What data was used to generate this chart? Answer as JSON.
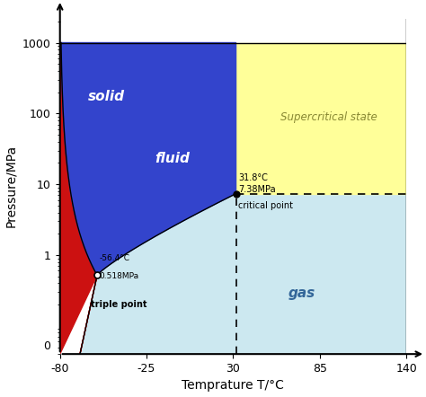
{
  "xlabel": "Temprature T/°C",
  "ylabel": "Pressure/MPa",
  "xmin": -80,
  "xmax": 140,
  "yticks_log": [
    1,
    10,
    100,
    1000
  ],
  "ytick_labels": [
    "1",
    "10",
    "100",
    "1000"
  ],
  "xticks": [
    -80,
    -25,
    30,
    85,
    140
  ],
  "triple_point": [
    -56.4,
    0.518
  ],
  "critical_point": [
    31.8,
    7.38
  ],
  "color_solid": "#cc1111",
  "color_fluid": "#3344cc",
  "color_gas": "#cce8f0",
  "color_supercritical": "#ffff99",
  "bg_color": "#ffffff",
  "label_solid": "solid",
  "label_fluid": "fluid",
  "label_gas": "gas",
  "label_supercritical": "Supercritical state",
  "P_plot_min": 0.04,
  "P_plot_max": 1000.0
}
